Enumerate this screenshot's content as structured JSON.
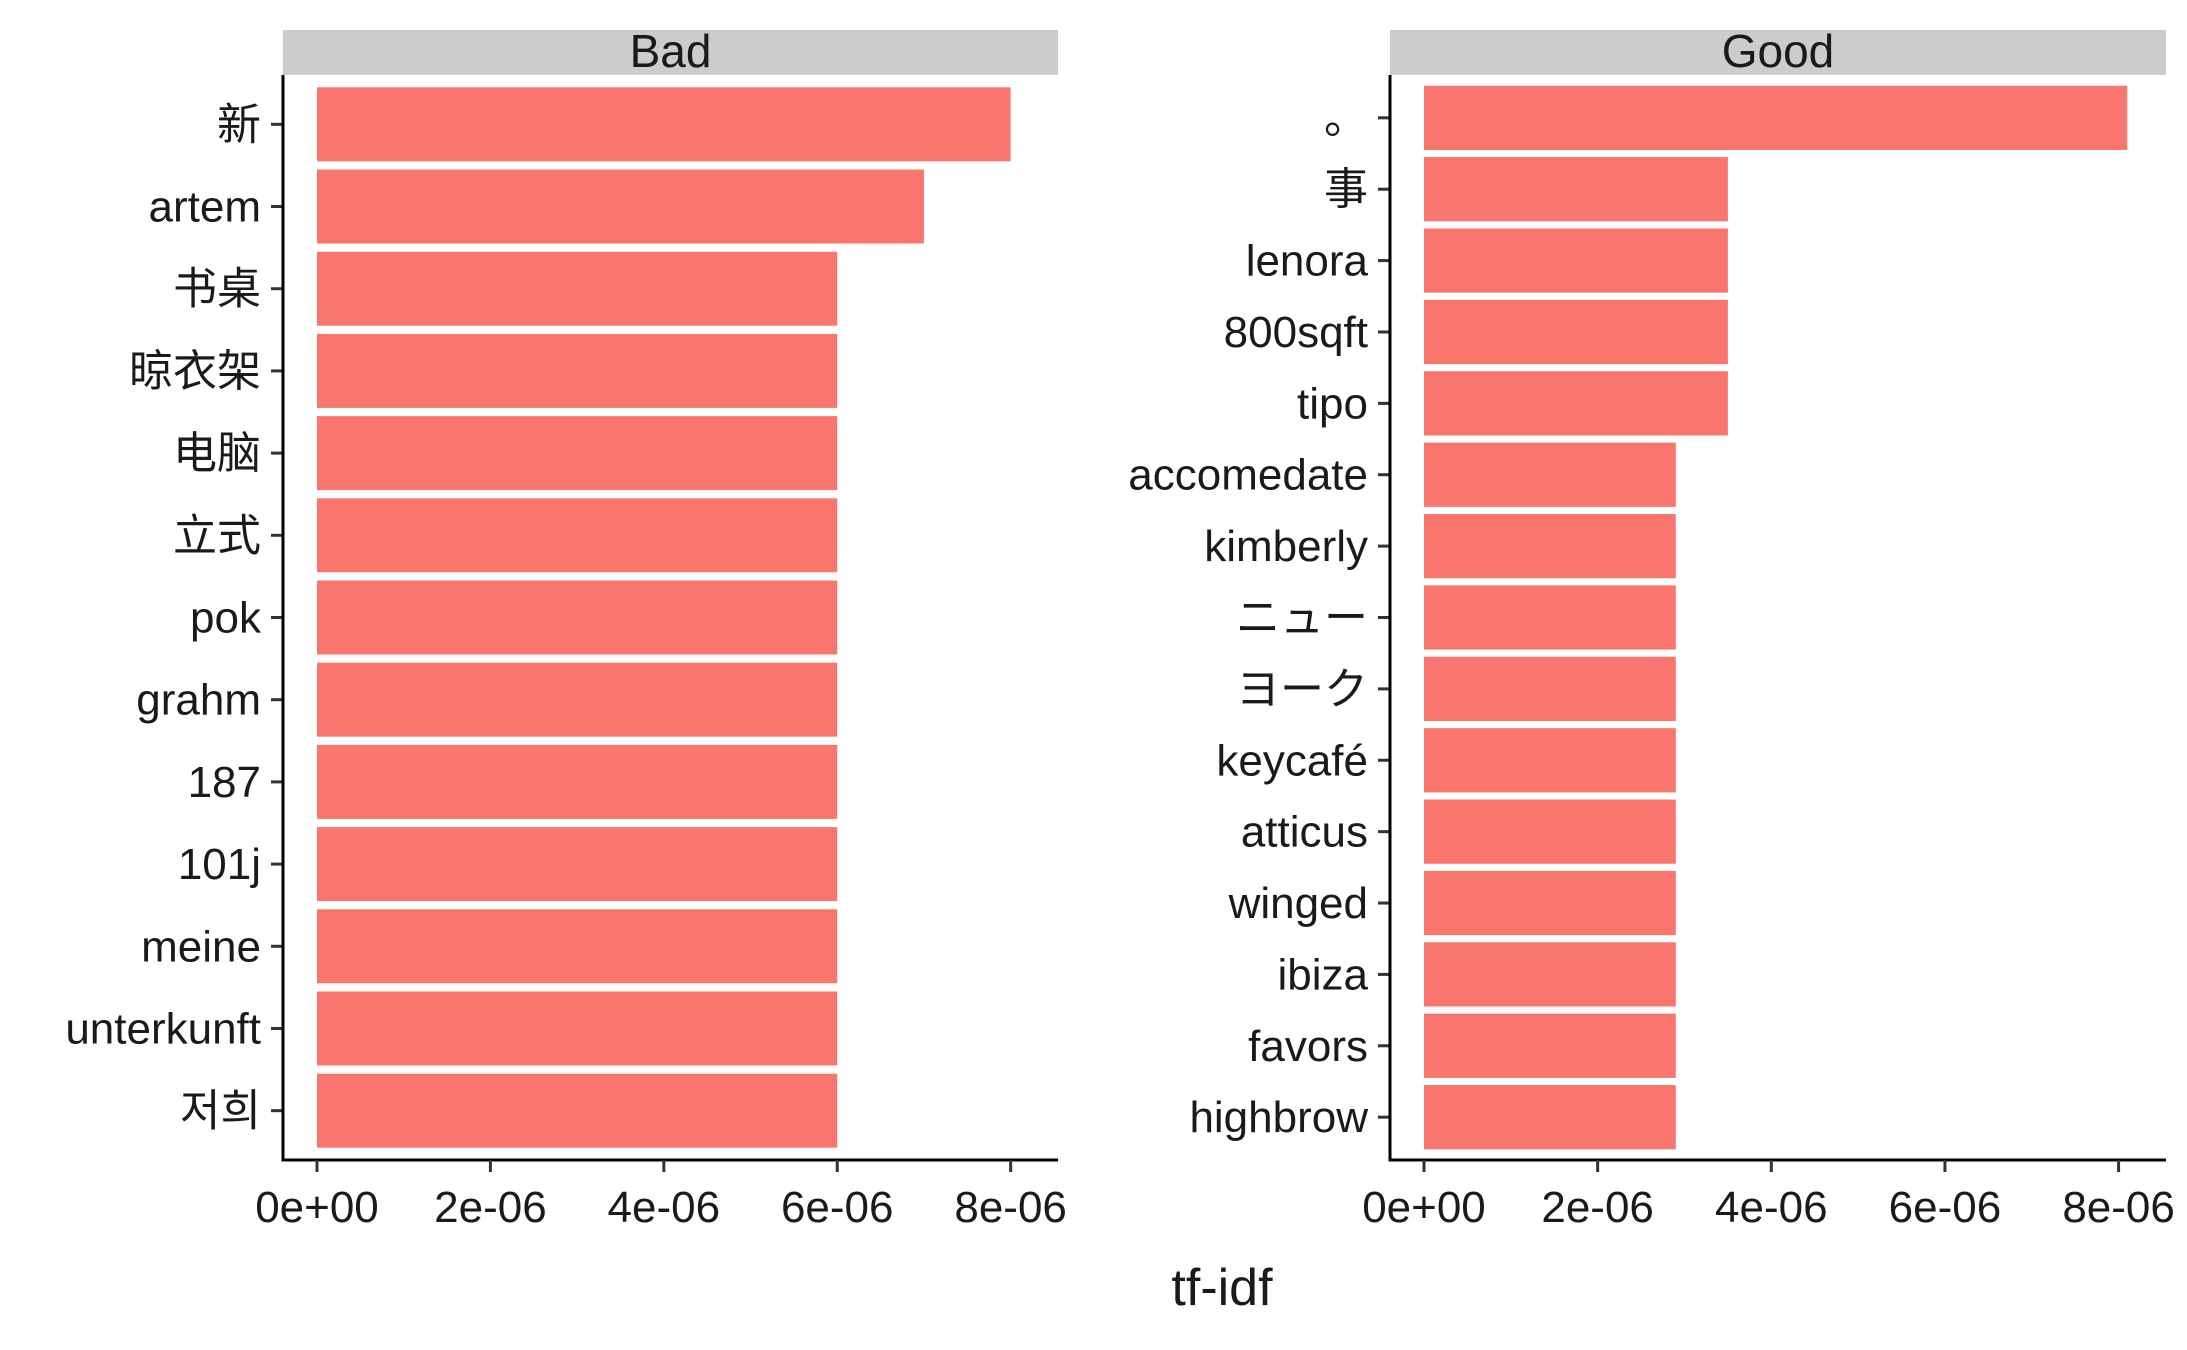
{
  "chart_data": {
    "type": "bar",
    "orientation": "horizontal",
    "xlabel": "tf-idf",
    "x_ticks": [
      "0e+00",
      "2e-06",
      "4e-06",
      "6e-06",
      "8e-06"
    ],
    "xlim": [
      0,
      8.5e-06
    ],
    "bar_color": "#F8766D",
    "strip_color": "#CCCCCC",
    "panels": [
      {
        "strip": "Bad",
        "categories": [
          "新",
          "artem",
          "书桌",
          "晾衣架",
          "电脑",
          "立式",
          "pok",
          "grahm",
          "187",
          "101j",
          "meine",
          "unterkunft",
          "저희"
        ],
        "values": [
          8e-06,
          7e-06,
          6e-06,
          6e-06,
          6e-06,
          6e-06,
          6e-06,
          6e-06,
          6e-06,
          6e-06,
          6e-06,
          6e-06,
          6e-06
        ]
      },
      {
        "strip": "Good",
        "categories": [
          "。",
          "事",
          "lenora",
          "800sqft",
          "tipo",
          "accomedate",
          "kimberly",
          "ニュー",
          "ヨーク",
          "keycafé",
          "atticus",
          "winged",
          "ibiza",
          "favors",
          "highbrow"
        ],
        "values": [
          8.1e-06,
          3.5e-06,
          3.5e-06,
          3.5e-06,
          3.5e-06,
          2.9e-06,
          2.9e-06,
          2.9e-06,
          2.9e-06,
          2.9e-06,
          2.9e-06,
          2.9e-06,
          2.9e-06,
          2.9e-06,
          2.9e-06
        ]
      }
    ]
  }
}
